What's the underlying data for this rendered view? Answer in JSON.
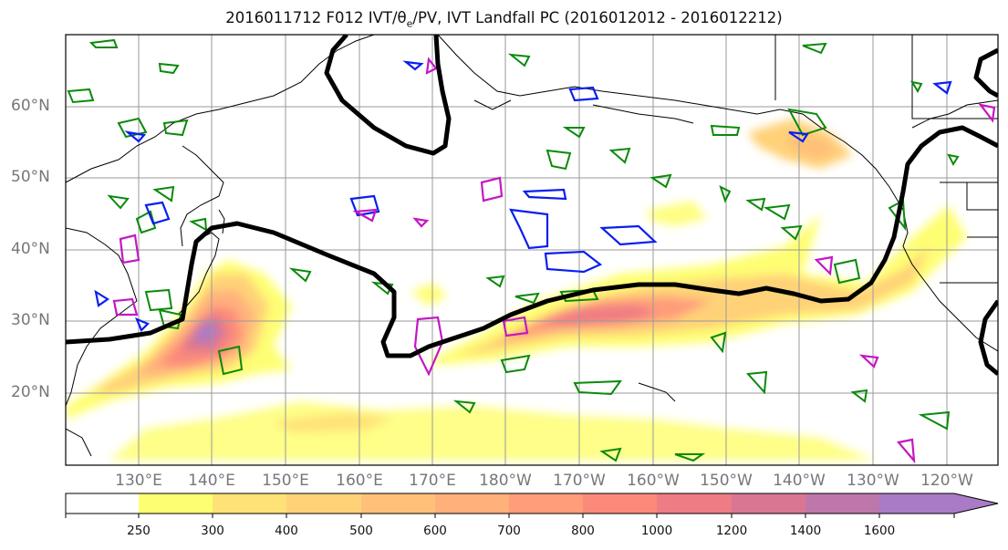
{
  "title_text": "2016011712 F012 IVT/θ",
  "title_sub": "e",
  "title_rest": "/PV, IVT Landfall PC (2016012012 - 2016012212)",
  "map": {
    "lat_labels": [
      "60°N",
      "50°N",
      "40°N",
      "30°N",
      "20°N"
    ],
    "lon_labels": [
      "130°E",
      "140°E",
      "150°E",
      "160°E",
      "170°E",
      "180°W",
      "170°W",
      "160°W",
      "150°W",
      "140°W",
      "130°W",
      "120°W"
    ]
  },
  "colorbar": {
    "ticks": [
      "250",
      "300",
      "400",
      "500",
      "600",
      "700",
      "800",
      "1000",
      "1200",
      "1400",
      "1600"
    ],
    "colors": [
      "#fefe73",
      "#ffe277",
      "#ffd278",
      "#ffc07a",
      "#ffb07b",
      "#ff9c7a",
      "#fb8a7a",
      "#ee7c84",
      "#d97793",
      "#be77ab",
      "#a97bc6"
    ],
    "extend": "max"
  },
  "chart_data": {
    "type": "heatmap",
    "variable": "IVT",
    "levels": [
      250,
      300,
      400,
      500,
      600,
      700,
      800,
      1000,
      1200,
      1400,
      1600
    ],
    "overlays": [
      "θe contours (green)",
      "PV contours (blue)",
      "PV contours (magenta)",
      "IVT landfall PC (black)"
    ]
  }
}
